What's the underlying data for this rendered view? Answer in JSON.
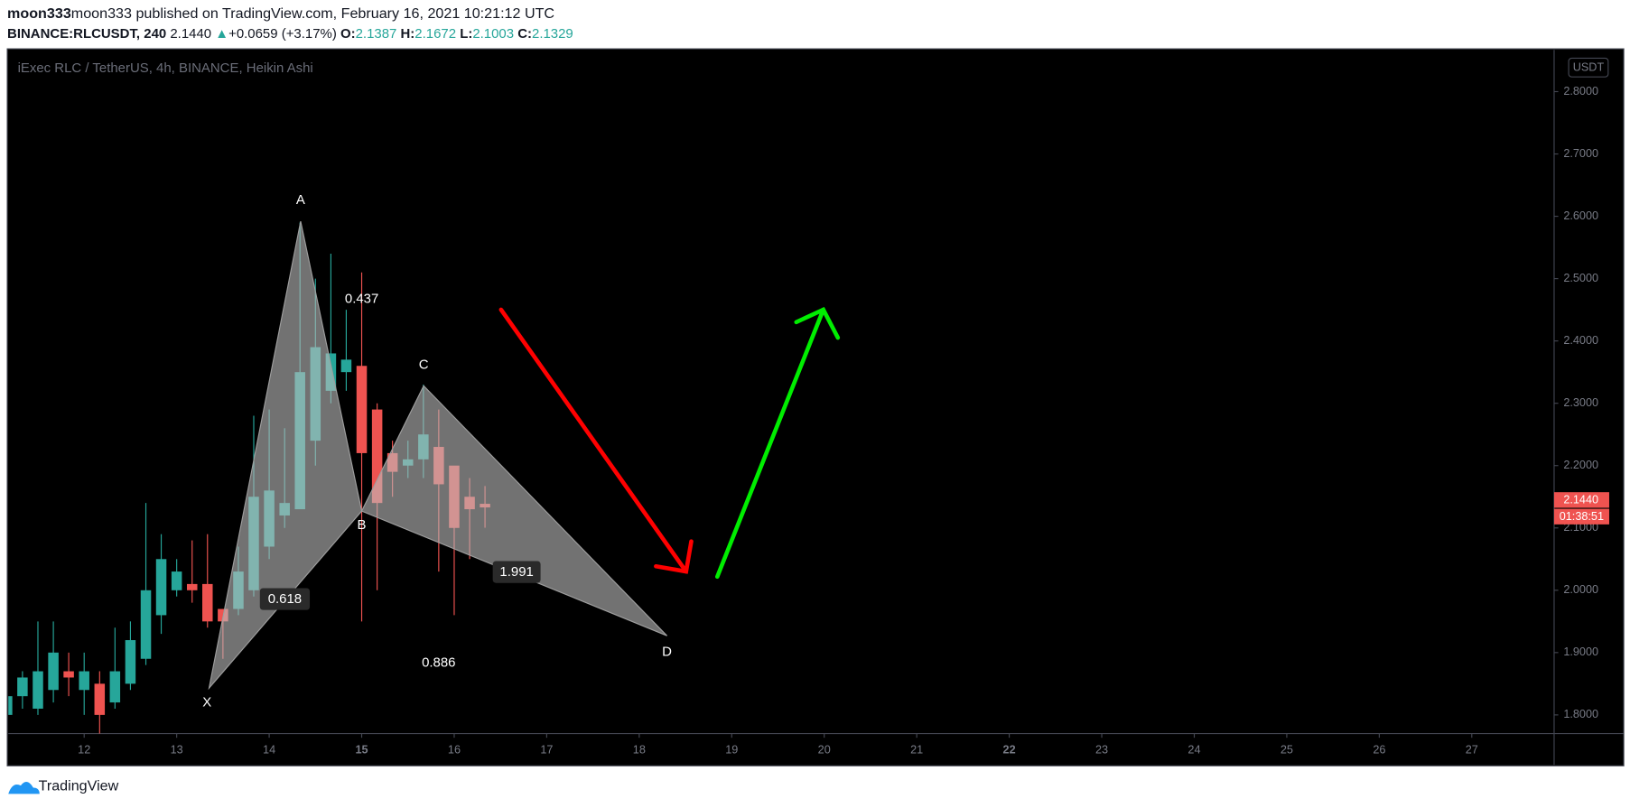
{
  "header": {
    "byline": "moon333 published on TradingView.com, February 16, 2021 10:21:12 UTC",
    "symbol": "BINANCE:RLCUSDT, 240",
    "last": "2.1440",
    "arrow": "▲",
    "change": "+0.0659 (+3.17%)",
    "o_label": "O:",
    "o": "2.1387",
    "h_label": "H:",
    "h": "2.1672",
    "l_label": "L:",
    "l": "2.1003",
    "c_label": "C:",
    "c": "2.1329"
  },
  "chart_data": {
    "type": "candlestick",
    "title": "iExec RLC / TetherUS, 4h, BINANCE, Heikin Ashi",
    "currency": "USDT",
    "x": [
      11.167,
      11.333,
      11.5,
      11.667,
      11.833,
      12,
      12.167,
      12.333,
      12.5,
      12.667,
      12.833,
      13,
      13.167,
      13.333,
      13.5,
      13.667,
      13.833,
      14,
      14.167,
      14.333,
      14.5,
      14.667,
      14.833,
      15,
      15.167,
      15.333,
      15.5,
      15.667,
      15.833,
      16,
      16.167,
      16.333
    ],
    "open": [
      1.8,
      1.83,
      1.81,
      1.84,
      1.87,
      1.84,
      1.85,
      1.82,
      1.85,
      1.89,
      1.96,
      2.0,
      2.01,
      2.01,
      1.97,
      1.97,
      2.0,
      2.07,
      2.12,
      2.13,
      2.24,
      2.32,
      2.35,
      2.36,
      2.29,
      2.22,
      2.2,
      2.21,
      2.23,
      2.2,
      2.15,
      2.1387
    ],
    "high": [
      1.84,
      1.87,
      1.95,
      1.95,
      1.9,
      1.9,
      1.87,
      1.94,
      1.95,
      2.14,
      2.09,
      2.05,
      2.08,
      2.09,
      1.97,
      2.07,
      2.28,
      2.29,
      2.26,
      2.59,
      2.5,
      2.54,
      2.45,
      2.51,
      2.3,
      2.24,
      2.24,
      2.33,
      2.29,
      2.19,
      2.18,
      2.1672
    ],
    "low": [
      1.78,
      1.81,
      1.8,
      1.82,
      1.83,
      1.8,
      1.77,
      1.81,
      1.84,
      1.88,
      1.93,
      1.99,
      1.98,
      1.94,
      1.89,
      1.96,
      1.99,
      2.05,
      2.1,
      2.13,
      2.2,
      2.3,
      2.32,
      1.95,
      2.0,
      2.15,
      2.18,
      2.18,
      2.03,
      1.96,
      2.05,
      2.1003
    ],
    "close": [
      1.83,
      1.86,
      1.87,
      1.9,
      1.86,
      1.87,
      1.8,
      1.87,
      1.92,
      2.0,
      2.05,
      2.03,
      2.0,
      1.95,
      1.95,
      2.03,
      2.15,
      2.16,
      2.14,
      2.35,
      2.39,
      2.38,
      2.37,
      2.22,
      2.14,
      2.19,
      2.21,
      2.25,
      2.17,
      2.1,
      2.13,
      2.1329
    ],
    "up_color": "#26a69a",
    "down_color": "#ef5350",
    "xlim": [
      11.18,
      27.89
    ],
    "xticks": [
      12,
      13,
      14,
      15,
      16,
      17,
      18,
      19,
      20,
      21,
      22,
      23,
      24,
      25,
      26,
      27
    ],
    "ylim": [
      1.77,
      2.867
    ],
    "yticks": [
      {
        "value": 1.8,
        "label": "1.8000"
      },
      {
        "value": 1.9,
        "label": "1.9000"
      },
      {
        "value": 2.0,
        "label": "2.0000"
      },
      {
        "value": 2.1,
        "label": "2.1000"
      },
      {
        "value": 2.2,
        "label": "2.2000"
      },
      {
        "value": 2.3,
        "label": "2.3000"
      },
      {
        "value": 2.4,
        "label": "2.4000"
      },
      {
        "value": 2.5,
        "label": "2.5000"
      },
      {
        "value": 2.6,
        "label": "2.6000"
      },
      {
        "value": 2.7,
        "label": "2.7000"
      },
      {
        "value": 2.8,
        "label": "2.8000"
      }
    ],
    "last_price": {
      "value": 2.144,
      "label": "2.1440"
    },
    "countdown": "01:38:51",
    "pattern": {
      "points": [
        {
          "label": "X",
          "x": 13.35,
          "y": 1.843
        },
        {
          "label": "A",
          "x": 14.34,
          "y": 2.592
        },
        {
          "label": "B",
          "x": 15.0,
          "y": 2.127
        },
        {
          "label": "C",
          "x": 15.67,
          "y": 2.328
        },
        {
          "label": "D",
          "x": 18.3,
          "y": 1.927
        }
      ],
      "ratios": [
        0.618,
        0.437,
        1.991,
        0.886
      ]
    }
  },
  "footer": {
    "brand": "TradingView"
  }
}
